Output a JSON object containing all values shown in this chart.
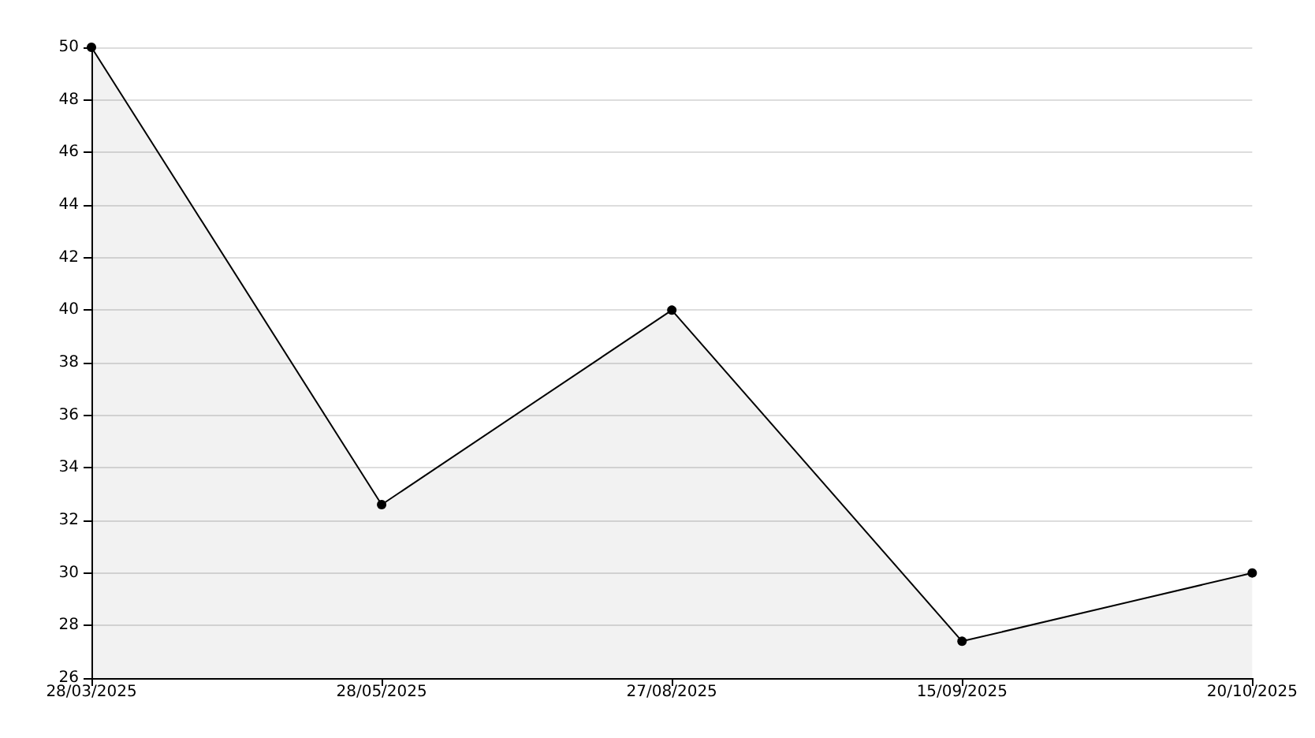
{
  "chart_data": {
    "type": "area",
    "categories": [
      "28/03/2025",
      "28/05/2025",
      "27/08/2025",
      "15/09/2025",
      "20/10/2025"
    ],
    "series": [
      {
        "color": "#000000",
        "values": [
          50,
          32.6,
          40,
          27.4,
          30
        ]
      }
    ],
    "ylim": [
      26,
      50
    ],
    "yticks": [
      26,
      28,
      30,
      32,
      34,
      36,
      38,
      40,
      42,
      44,
      46,
      48,
      50
    ],
    "grid": "y",
    "marker": "circle",
    "line_style": "solid"
  }
}
